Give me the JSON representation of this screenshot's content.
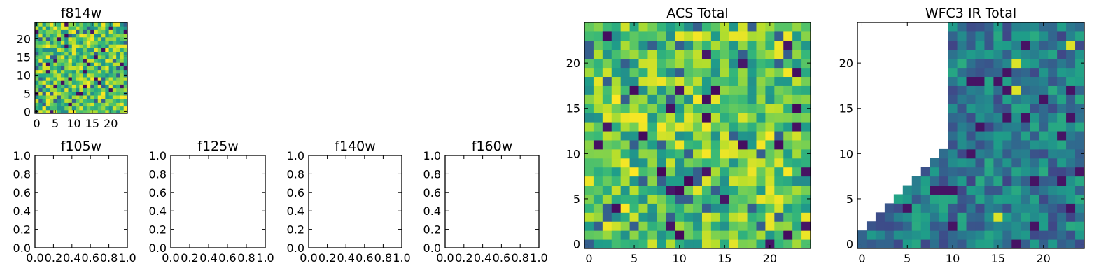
{
  "colormap": "viridis",
  "chart_data": [
    {
      "type": "heatmap",
      "title": "f814w",
      "grid_size": 25,
      "xlim": [
        -0.5,
        24.5
      ],
      "ylim": [
        -0.5,
        24.5
      ],
      "xticks": [
        0,
        5,
        10,
        15,
        20
      ],
      "yticks": [
        0,
        5,
        10,
        15,
        20
      ],
      "origin": "lower",
      "fill": "random-high",
      "seed": 7
    },
    {
      "type": "empty",
      "title": "f105w",
      "xlim": [
        0,
        1
      ],
      "ylim": [
        0,
        1
      ],
      "xticks": [
        "0.0",
        "0.2",
        "0.4",
        "0.6",
        "0.8",
        "1.0"
      ],
      "yticks": [
        "0.0",
        "0.2",
        "0.4",
        "0.6",
        "0.8",
        "1.0"
      ]
    },
    {
      "type": "empty",
      "title": "f125w",
      "xlim": [
        0,
        1
      ],
      "ylim": [
        0,
        1
      ],
      "xticks": [
        "0.0",
        "0.2",
        "0.4",
        "0.6",
        "0.8",
        "1.0"
      ],
      "yticks": [
        "0.0",
        "0.2",
        "0.4",
        "0.6",
        "0.8",
        "1.0"
      ]
    },
    {
      "type": "empty",
      "title": "f140w",
      "xlim": [
        0,
        1
      ],
      "ylim": [
        0,
        1
      ],
      "xticks": [
        "0.0",
        "0.2",
        "0.4",
        "0.6",
        "0.8",
        "1.0"
      ],
      "yticks": [
        "0.0",
        "0.2",
        "0.4",
        "0.6",
        "0.8",
        "1.0"
      ]
    },
    {
      "type": "empty",
      "title": "f160w",
      "xlim": [
        0,
        1
      ],
      "ylim": [
        0,
        1
      ],
      "xticks": [
        "0.0",
        "0.2",
        "0.4",
        "0.6",
        "0.8",
        "1.0"
      ],
      "yticks": [
        "0.0",
        "0.2",
        "0.4",
        "0.6",
        "0.8",
        "1.0"
      ]
    },
    {
      "type": "heatmap",
      "title": "ACS Total",
      "grid_size": 25,
      "xlim": [
        -0.5,
        24.5
      ],
      "ylim": [
        -0.5,
        24.5
      ],
      "xticks": [
        0,
        5,
        10,
        15,
        20
      ],
      "yticks": [
        0,
        5,
        10,
        15,
        20
      ],
      "origin": "lower",
      "fill": "random-high",
      "seed": 21
    },
    {
      "type": "heatmap",
      "title": "WFC3 IR Total",
      "grid_size": 25,
      "xlim": [
        -0.5,
        24.5
      ],
      "ylim": [
        -0.5,
        24.5
      ],
      "xticks": [
        0,
        5,
        10,
        15,
        20
      ],
      "yticks": [
        0,
        5,
        10,
        15,
        20
      ],
      "origin": "lower",
      "fill": "random-mid",
      "masked_region": "upper-left triangle (empty/white)",
      "seed": 43
    }
  ]
}
